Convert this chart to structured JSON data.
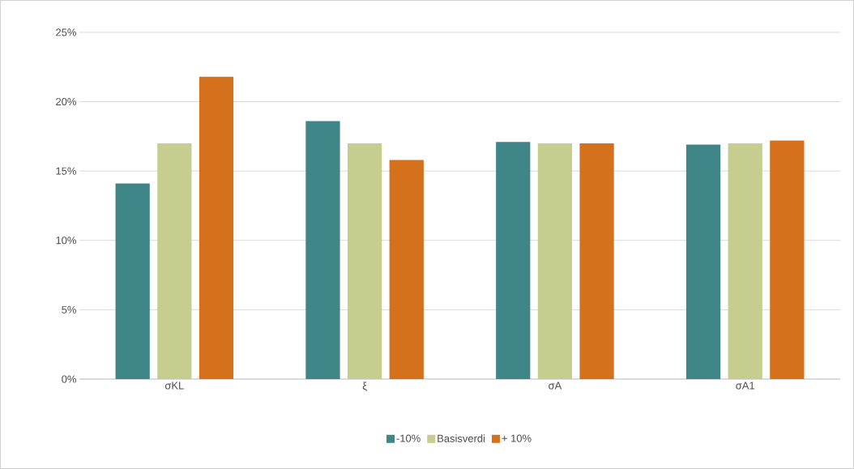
{
  "chart_data": {
    "type": "bar",
    "categories": [
      "σKL",
      "ξ",
      "σA",
      "σA1"
    ],
    "series": [
      {
        "name": "-10%",
        "color": "#3f8689",
        "values": [
          14.1,
          18.6,
          17.1,
          16.9
        ]
      },
      {
        "name": "Basisverdi",
        "color": "#c6cd8e",
        "values": [
          17.0,
          17.0,
          17.0,
          17.0
        ]
      },
      {
        "name": "+ 10%",
        "color": "#d5711d",
        "values": [
          21.8,
          15.8,
          17.0,
          17.2
        ]
      }
    ],
    "ylim": [
      0,
      25
    ],
    "yticks": [
      {
        "value": 0,
        "label": "0%"
      },
      {
        "value": 5,
        "label": "5%"
      },
      {
        "value": 10,
        "label": "10%"
      },
      {
        "value": 15,
        "label": "15%"
      },
      {
        "value": 20,
        "label": "20%"
      },
      {
        "value": 25,
        "label": "25%"
      }
    ],
    "grid": "y",
    "legend": "bottom"
  }
}
